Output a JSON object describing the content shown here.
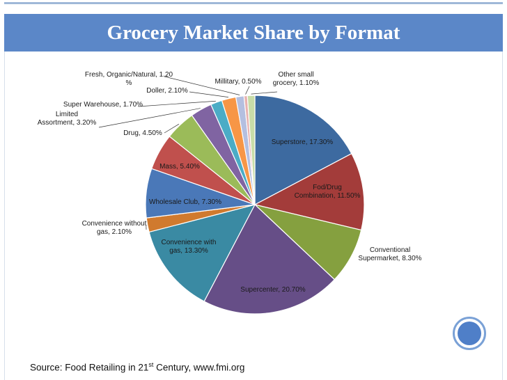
{
  "slide": {
    "title": "Grocery Market Share by Format",
    "source_pre": "Source: Food Retailing in 21",
    "source_sup": "st",
    "source_post": " Century, www.fmi.org"
  },
  "chart_data": {
    "type": "pie",
    "title": "Grocery Market Share by Format",
    "unit": "%",
    "slices": [
      {
        "label": "Superstore, 17.30%",
        "value": 17.3,
        "color": "#3d6aa0"
      },
      {
        "label": "Fod/Drug Combination, 11.50%",
        "value": 11.5,
        "color": "#a33c3a"
      },
      {
        "label": "Conventional Supermarket, 8.30%",
        "value": 8.3,
        "color": "#85a03f"
      },
      {
        "label": "Supercenter, 20.70%",
        "value": 20.7,
        "color": "#664e87"
      },
      {
        "label": "Convenience with gas, 13.30%",
        "value": 13.3,
        "color": "#3a8aa3"
      },
      {
        "label": "Convenience without gas, 2.10%",
        "value": 2.1,
        "color": "#d07a2e"
      },
      {
        "label": "Wholesale Club, 7.30%",
        "value": 7.3,
        "color": "#4a78b8"
      },
      {
        "label": "Mass, 5.40%",
        "value": 5.4,
        "color": "#c0504d"
      },
      {
        "label": "Drug, 4.50%",
        "value": 4.5,
        "color": "#9bbb59"
      },
      {
        "label": "Limited Assortment, 3.20%",
        "value": 3.2,
        "color": "#8064a2"
      },
      {
        "label": "Super Warehouse, 1.70%",
        "value": 1.7,
        "color": "#4bacc6"
      },
      {
        "label": "Doller, 2.10%",
        "value": 2.1,
        "color": "#f79646"
      },
      {
        "label": "Fresh, Organic/Natural, 1.20 %",
        "value": 1.2,
        "color": "#b4bfe0"
      },
      {
        "label": "Millitary, 0.50%",
        "value": 0.5,
        "color": "#e8b2b0"
      },
      {
        "label": "Other small grocery, 1.10%",
        "value": 1.1,
        "color": "#c8dca8"
      }
    ]
  }
}
